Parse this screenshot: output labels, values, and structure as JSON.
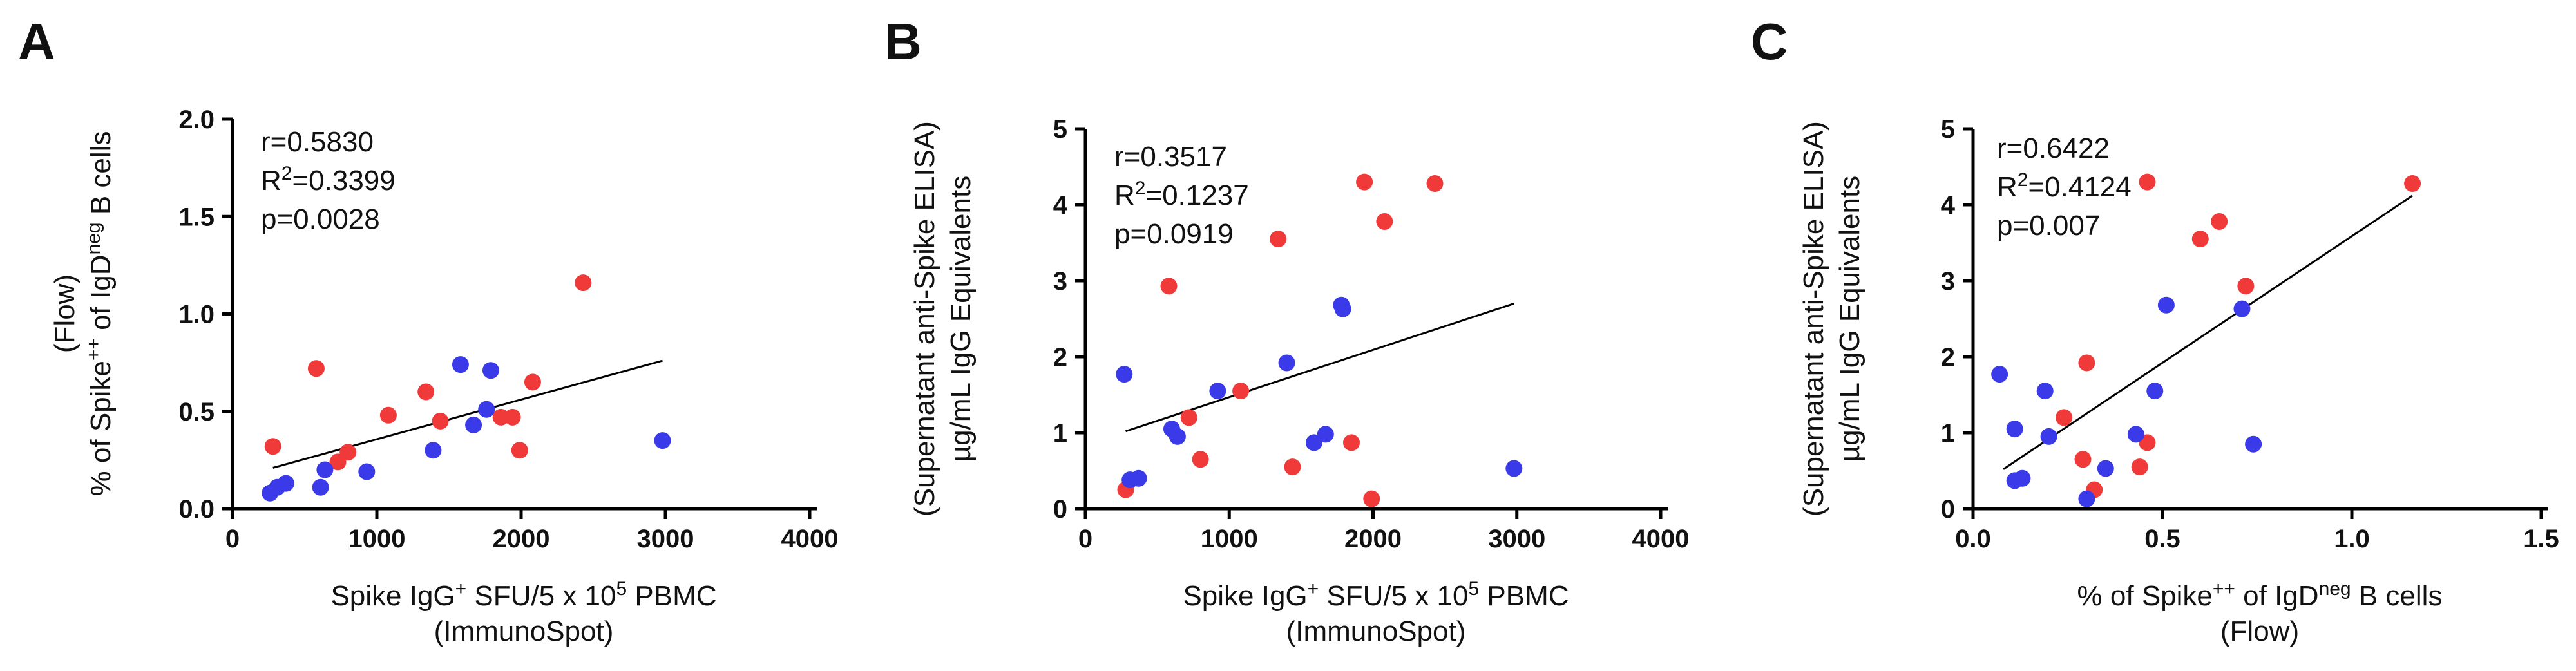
{
  "colors": {
    "red_group": "#f03a3a",
    "blue_group": "#3a3ae8",
    "axis": "#000000"
  },
  "chart_data": [
    {
      "type": "scatter",
      "panel": "A",
      "xlim": [
        0,
        4000
      ],
      "ylim": [
        0.0,
        2.0
      ],
      "xticks": [
        "0",
        "1000",
        "2000",
        "3000",
        "4000"
      ],
      "yticks": [
        "0.0",
        "0.5",
        "1.0",
        "1.5",
        "2.0"
      ],
      "xlabel": {
        "line1_pre": "Spike IgG",
        "line1_sup": "+",
        "line1_post": " SFU/5 x 10",
        "line1_sup2": "5",
        "line1_post2": " PBMC",
        "line2": "(ImmunoSpot)"
      },
      "ylabel": {
        "line1": "(Flow)",
        "line2_pre": "% of Spike",
        "line2_sup": "++",
        "line2_mid": " of IgD",
        "line2_sup2": "neg",
        "line2_post": " B cells"
      },
      "stats": {
        "r": "r=0.5830",
        "r2_pre": "R",
        "r2_sup": "2",
        "r2_post": "=0.3399",
        "p": "p=0.0028"
      },
      "fit": [
        [
          280,
          0.21
        ],
        [
          2980,
          0.76
        ]
      ],
      "series": [
        {
          "name": "red",
          "color": "#f03a3a",
          "points": [
            [
              280,
              0.32
            ],
            [
              580,
              0.72
            ],
            [
              730,
              0.24
            ],
            [
              800,
              0.29
            ],
            [
              1080,
              0.48
            ],
            [
              1340,
              0.6
            ],
            [
              1440,
              0.45
            ],
            [
              1860,
              0.47
            ],
            [
              1940,
              0.47
            ],
            [
              1990,
              0.3
            ],
            [
              2080,
              0.65
            ],
            [
              2430,
              1.16
            ]
          ]
        },
        {
          "name": "blue",
          "color": "#3a3ae8",
          "points": [
            [
              260,
              0.08
            ],
            [
              310,
              0.11
            ],
            [
              370,
              0.13
            ],
            [
              610,
              0.11
            ],
            [
              640,
              0.2
            ],
            [
              930,
              0.19
            ],
            [
              1390,
              0.3
            ],
            [
              1580,
              0.74
            ],
            [
              1670,
              0.43
            ],
            [
              1760,
              0.51
            ],
            [
              1790,
              0.71
            ],
            [
              2980,
              0.35
            ]
          ]
        }
      ]
    },
    {
      "type": "scatter",
      "panel": "B",
      "xlim": [
        0,
        4000
      ],
      "ylim": [
        0,
        5
      ],
      "xticks": [
        "0",
        "1000",
        "2000",
        "3000",
        "4000"
      ],
      "yticks": [
        "0",
        "1",
        "2",
        "3",
        "4",
        "5"
      ],
      "xlabel": {
        "line1_pre": "Spike IgG",
        "line1_sup": "+",
        "line1_post": " SFU/5 x 10",
        "line1_sup2": "5",
        "line1_post2": " PBMC",
        "line2": "(ImmunoSpot)"
      },
      "ylabel": {
        "line1": "(Supernatant anti-Spike ELISA)",
        "line2": "µg/mL IgG Equivalents"
      },
      "stats": {
        "r": "r=0.3517",
        "r2_pre": "R",
        "r2_sup": "2",
        "r2_post": "=0.1237",
        "p": "p=0.0919"
      },
      "fit": [
        [
          280,
          1.02
        ],
        [
          2980,
          2.7
        ]
      ],
      "series": [
        {
          "name": "red",
          "color": "#f03a3a",
          "points": [
            [
              280,
              0.25
            ],
            [
              580,
              2.93
            ],
            [
              720,
              1.2
            ],
            [
              800,
              0.65
            ],
            [
              1080,
              1.55
            ],
            [
              1340,
              3.55
            ],
            [
              1440,
              0.55
            ],
            [
              1850,
              0.87
            ],
            [
              1940,
              4.3
            ],
            [
              1990,
              0.13
            ],
            [
              2080,
              3.78
            ],
            [
              2430,
              4.28
            ]
          ]
        },
        {
          "name": "blue",
          "color": "#3a3ae8",
          "points": [
            [
              270,
              1.77
            ],
            [
              310,
              0.38
            ],
            [
              370,
              0.4
            ],
            [
              600,
              1.05
            ],
            [
              640,
              0.95
            ],
            [
              920,
              1.55
            ],
            [
              1400,
              1.92
            ],
            [
              1590,
              0.87
            ],
            [
              1670,
              0.98
            ],
            [
              1780,
              2.68
            ],
            [
              1790,
              2.63
            ],
            [
              2980,
              0.53
            ]
          ]
        }
      ]
    },
    {
      "type": "scatter",
      "panel": "C",
      "xlim": [
        0.0,
        1.5
      ],
      "ylim": [
        0,
        5
      ],
      "xticks": [
        "0.0",
        "0.5",
        "1.0",
        "1.5"
      ],
      "yticks": [
        "0",
        "1",
        "2",
        "3",
        "4",
        "5"
      ],
      "xlabel": {
        "line1_pre": "% of Spike",
        "line1_sup": "++",
        "line1_post": " of IgD",
        "line1_sup2": "neg",
        "line1_post2": " B cells",
        "line2": "(Flow)"
      },
      "ylabel": {
        "line1": "(Supernatant anti-Spike ELISA)",
        "line2": "µg/mL IgG Equivalents"
      },
      "stats": {
        "r": "r=0.6422",
        "r2_pre": "R",
        "r2_sup": "2",
        "r2_post": "=0.4124",
        "p": "p=0.007"
      },
      "fit": [
        [
          0.08,
          0.52
        ],
        [
          1.16,
          4.12
        ]
      ],
      "series": [
        {
          "name": "red",
          "color": "#f03a3a",
          "points": [
            [
              0.24,
              1.2
            ],
            [
              0.29,
              0.65
            ],
            [
              0.3,
              1.92
            ],
            [
              0.32,
              0.25
            ],
            [
              0.44,
              0.55
            ],
            [
              0.46,
              0.87
            ],
            [
              0.46,
              4.3
            ],
            [
              0.6,
              3.55
            ],
            [
              0.65,
              3.78
            ],
            [
              0.72,
              2.93
            ],
            [
              1.16,
              4.28
            ]
          ]
        },
        {
          "name": "blue",
          "color": "#3a3ae8",
          "points": [
            [
              0.07,
              1.77
            ],
            [
              0.11,
              1.05
            ],
            [
              0.11,
              0.37
            ],
            [
              0.13,
              0.4
            ],
            [
              0.19,
              1.55
            ],
            [
              0.2,
              0.95
            ],
            [
              0.3,
              0.13
            ],
            [
              0.35,
              0.53
            ],
            [
              0.43,
              0.98
            ],
            [
              0.48,
              1.55
            ],
            [
              0.51,
              2.68
            ],
            [
              0.71,
              2.63
            ],
            [
              0.74,
              0.85
            ]
          ]
        }
      ]
    }
  ]
}
